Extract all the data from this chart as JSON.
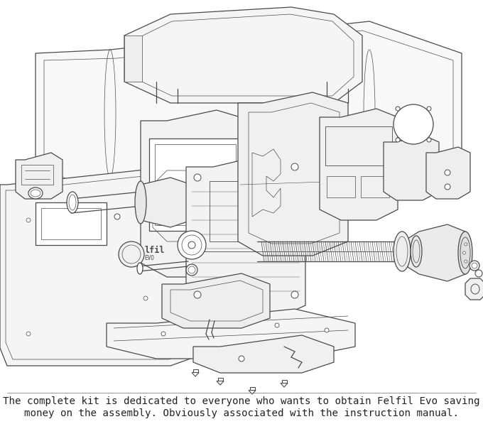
{
  "background_color": "#ffffff",
  "line_color": "#4a4a4a",
  "line_width": 0.9,
  "caption_line1": "The complete kit is dedicated to everyone who wants to obtain Felfil Evo saving",
  "caption_line2": "money on the assembly. Obviously associated with the instruction manual.",
  "caption_fontsize": 10.2,
  "caption_color": "#222222",
  "fig_width": 6.8,
  "fig_height": 5.97,
  "dpi": 100
}
